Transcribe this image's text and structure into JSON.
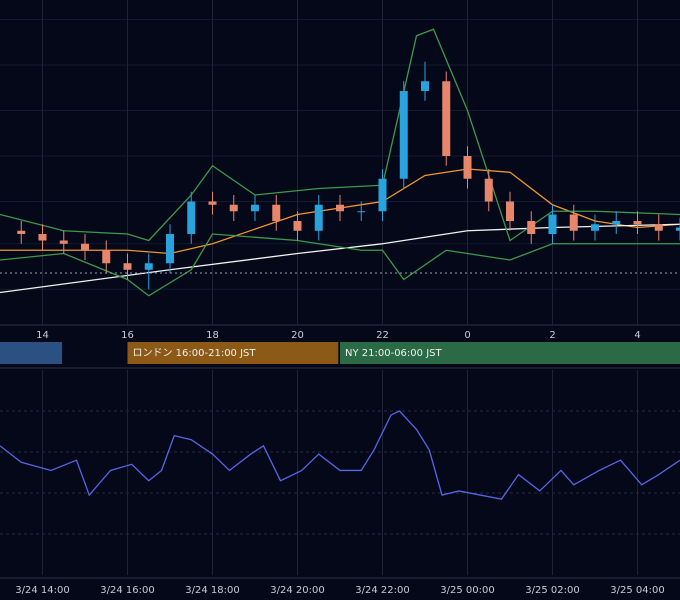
{
  "chart_data": [
    {
      "type": "candlestick",
      "x": [
        13.5,
        14,
        14.5,
        15,
        15.5,
        16,
        16.5,
        17,
        17.5,
        18,
        18.5,
        19,
        19.5,
        20,
        20.5,
        21,
        21.5,
        22,
        22.5,
        23,
        23.5,
        24,
        24.5,
        25,
        25.5,
        26,
        26.5,
        27,
        27.5,
        28,
        28.5,
        29
      ],
      "open": [
        29,
        28,
        26,
        25,
        23,
        19,
        17,
        19,
        28,
        38,
        37,
        35,
        37,
        32,
        29,
        37,
        35,
        35,
        45,
        72,
        75,
        52,
        45,
        38,
        32,
        28,
        34,
        29,
        31,
        32,
        31,
        29
      ],
      "high": [
        32,
        31,
        29,
        28,
        26,
        22,
        22,
        31,
        41,
        41,
        40,
        40,
        40,
        35,
        40,
        40,
        38,
        48,
        75,
        81,
        78,
        55,
        48,
        41,
        35,
        37,
        37,
        34,
        35,
        35,
        34,
        33
      ],
      "low": [
        25,
        23,
        22,
        20,
        16,
        14,
        11,
        16,
        25,
        34,
        32,
        32,
        29,
        26,
        26,
        32,
        32,
        32,
        42,
        69,
        49,
        42,
        35,
        29,
        25,
        25,
        26,
        26,
        28,
        28,
        26,
        26
      ],
      "close": [
        28,
        26,
        25,
        23,
        19,
        17,
        19,
        28,
        38,
        37,
        35,
        37,
        32,
        29,
        37,
        35,
        35,
        45,
        72,
        75,
        52,
        45,
        38,
        32,
        28,
        34,
        29,
        31,
        32,
        31,
        29,
        30
      ],
      "up_color": "#29a3dd",
      "down_color": "#e8866c",
      "series": [
        {
          "color": "#f0962c",
          "x": [
            13,
            16,
            17,
            18,
            20,
            22,
            23,
            24,
            25,
            26,
            27,
            28,
            29
          ],
          "values": [
            23,
            23,
            22,
            25,
            34,
            38,
            46,
            48,
            47,
            37,
            32,
            30,
            31
          ]
        },
        {
          "color": "#f2f2f2",
          "x": [
            13,
            17,
            20,
            22,
            24,
            26,
            29
          ],
          "values": [
            10,
            17,
            22,
            25,
            29,
            30,
            31
          ]
        },
        {
          "color": "#3c9a4c",
          "x": [
            13,
            14.5,
            16,
            16.5,
            17.5,
            18,
            19,
            20.5,
            22,
            22.8,
            23.2,
            24,
            25,
            26,
            27,
            29
          ],
          "values": [
            34,
            29,
            28,
            26,
            40,
            49,
            40,
            42,
            43,
            89,
            91,
            66,
            26,
            35,
            35,
            34
          ]
        },
        {
          "color": "#3c9a4c",
          "x": [
            13,
            14.5,
            16,
            16.5,
            17.5,
            18,
            20,
            21.5,
            22,
            22.5,
            23.5,
            24,
            25,
            26,
            29
          ],
          "values": [
            20,
            22,
            14,
            9,
            17,
            28,
            26,
            23,
            23,
            14,
            23,
            22,
            20,
            25,
            25
          ]
        }
      ],
      "price_line": 16,
      "ylim": [
        0,
        100
      ],
      "xlim": [
        13,
        29
      ],
      "gridlines": [
        94,
        80,
        66,
        52,
        38,
        25,
        11
      ],
      "xticks": [
        14,
        16,
        18,
        20,
        22,
        {
          "value": 24,
          "label": "0"
        },
        {
          "value": 26,
          "label": "2"
        },
        {
          "value": 28,
          "label": "4"
        }
      ],
      "sessions": [
        {
          "start": 12,
          "end": 14.46,
          "color": "#2a5182"
        },
        {
          "label": "ロンドン 16:00-21:00 JST",
          "start": 16,
          "end": 20.96,
          "color": "#8c5a16"
        },
        {
          "label": "NY 21:00-06:00 JST",
          "start": 21,
          "end": 30,
          "color": "#2a6a45"
        }
      ]
    },
    {
      "type": "line",
      "series": [
        {
          "color": "#5566e8",
          "x": [
            13,
            13.5,
            14.2,
            14.8,
            15.1,
            15.6,
            16.1,
            16.5,
            16.8,
            17.1,
            17.5,
            18,
            18.4,
            18.9,
            19.2,
            19.6,
            20.1,
            20.5,
            21,
            21.5,
            21.8,
            22.2,
            22.4,
            22.8,
            23.1,
            23.4,
            23.8,
            24.3,
            24.8,
            25.2,
            25.7,
            26.2,
            26.5,
            27.1,
            27.6,
            28.1,
            28.5,
            29
          ],
          "values": [
            63,
            55,
            51,
            56,
            39,
            51,
            54,
            46,
            51,
            68,
            66,
            59,
            51,
            59,
            63,
            46,
            51,
            59,
            51,
            51,
            61,
            78,
            80,
            71,
            61,
            39,
            41,
            39,
            37,
            49,
            41,
            51,
            44,
            51,
            56,
            44,
            49,
            56
          ]
        }
      ],
      "ylim": [
        0,
        100
      ],
      "xlim": [
        13,
        29
      ],
      "gridlines": [
        20,
        40,
        60,
        80
      ],
      "xticks": [
        {
          "value": 14,
          "label": "3/24 14:00"
        },
        {
          "value": 16,
          "label": "3/24 16:00"
        },
        {
          "value": 18,
          "label": "3/24 18:00"
        },
        {
          "value": 20,
          "label": "3/24 20:00"
        },
        {
          "value": 22,
          "label": "3/24 22:00"
        },
        {
          "value": 24,
          "label": "3/25 00:00"
        },
        {
          "value": 26,
          "label": "3/25 02:00"
        },
        {
          "value": 28,
          "label": "3/25 04:00"
        }
      ]
    }
  ]
}
